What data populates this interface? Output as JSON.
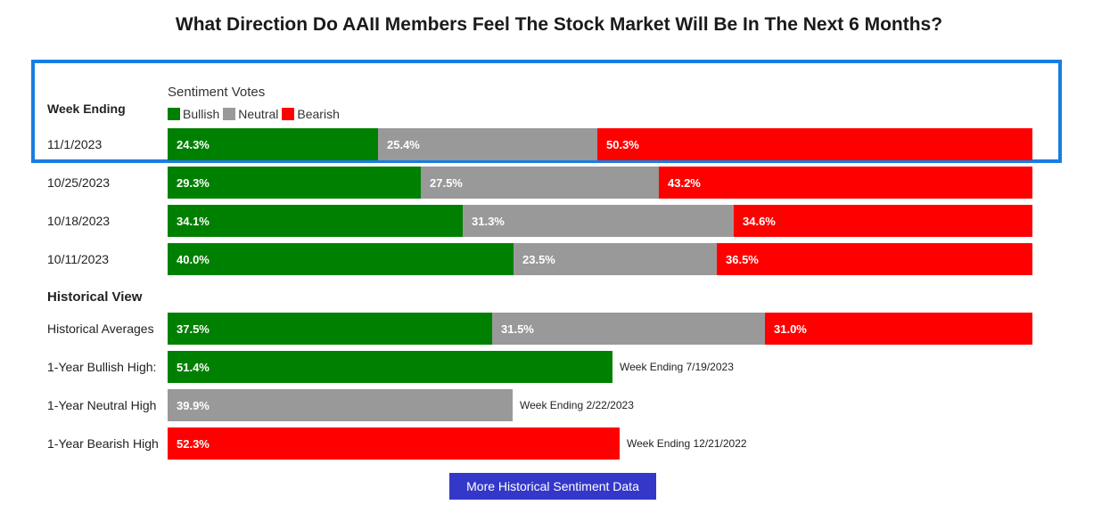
{
  "title": "What Direction Do AAII Members Feel The Stock Market Will Be In The Next 6 Months?",
  "legend": {
    "title": "Sentiment Votes",
    "items": [
      {
        "label": "Bullish",
        "color": "#008000"
      },
      {
        "label": "Neutral",
        "color": "#999999"
      },
      {
        "label": "Bearish",
        "color": "#ff0000"
      }
    ]
  },
  "week_column_header": "Week Ending",
  "historical_header": "Historical View",
  "button_label": "More Historical Sentiment Data",
  "chart_data": {
    "type": "bar",
    "stacked": true,
    "orientation": "horizontal",
    "series_names": [
      "Bullish",
      "Neutral",
      "Bearish"
    ],
    "colors": {
      "Bullish": "#008000",
      "Neutral": "#999999",
      "Bearish": "#ff0000"
    },
    "weekly": [
      {
        "label": "11/1/2023",
        "values": [
          24.3,
          25.4,
          50.3
        ],
        "texts": [
          "24.3%",
          "25.4%",
          "50.3%"
        ],
        "highlighted": true
      },
      {
        "label": "10/25/2023",
        "values": [
          29.3,
          27.5,
          43.2
        ],
        "texts": [
          "29.3%",
          "27.5%",
          "43.2%"
        ]
      },
      {
        "label": "10/18/2023",
        "values": [
          34.1,
          31.3,
          34.6
        ],
        "texts": [
          "34.1%",
          "31.3%",
          "34.6%"
        ]
      },
      {
        "label": "10/11/2023",
        "values": [
          40.0,
          23.5,
          36.5
        ],
        "texts": [
          "40.0%",
          "23.5%",
          "36.5%"
        ]
      }
    ],
    "historical": [
      {
        "label": "Historical Averages",
        "values": [
          37.5,
          31.5,
          31.0
        ],
        "texts": [
          "37.5%",
          "31.5%",
          "31.0%"
        ]
      },
      {
        "label": "1-Year Bullish High:",
        "series": "Bullish",
        "value": 51.4,
        "text": "51.4%",
        "note": "Week Ending 7/19/2023"
      },
      {
        "label": "1-Year Neutral High",
        "series": "Neutral",
        "value": 39.9,
        "text": "39.9%",
        "note": "Week Ending 2/22/2023"
      },
      {
        "label": "1-Year Bearish High",
        "series": "Bearish",
        "value": 52.3,
        "text": "52.3%",
        "note": "Week Ending 12/21/2022"
      }
    ]
  }
}
